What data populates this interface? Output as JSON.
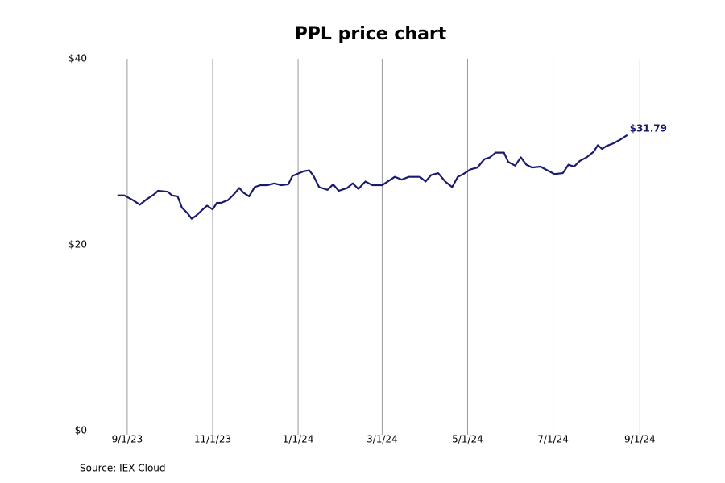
{
  "chart_data": {
    "type": "line",
    "title": "PPL price chart",
    "source": "Source: IEX Cloud",
    "xlim": [
      "2023-08-24",
      "2024-09-10"
    ],
    "xticks": [
      {
        "value": "2023-09-01",
        "label": "9/1/23"
      },
      {
        "value": "2023-11-01",
        "label": "11/1/23"
      },
      {
        "value": "2024-01-01",
        "label": "1/1/24"
      },
      {
        "value": "2024-03-01",
        "label": "3/1/24"
      },
      {
        "value": "2024-05-01",
        "label": "5/1/24"
      },
      {
        "value": "2024-07-01",
        "label": "7/1/24"
      },
      {
        "value": "2024-09-01",
        "label": "9/1/24"
      }
    ],
    "ylim": [
      0,
      40
    ],
    "yticks": [
      {
        "value": 0,
        "label": "$0"
      },
      {
        "value": 20,
        "label": "$20"
      },
      {
        "value": 40,
        "label": "$40"
      }
    ],
    "grid": "x",
    "x": [
      "2023-08-25",
      "2023-08-30",
      "2023-09-05",
      "2023-09-10",
      "2023-09-15",
      "2023-09-20",
      "2023-09-23",
      "2023-09-30",
      "2023-10-03",
      "2023-10-07",
      "2023-10-10",
      "2023-10-14",
      "2023-10-17",
      "2023-10-20",
      "2023-10-25",
      "2023-10-28",
      "2023-11-01",
      "2023-11-04",
      "2023-11-07",
      "2023-11-12",
      "2023-11-16",
      "2023-11-20",
      "2023-11-23",
      "2023-11-27",
      "2023-12-01",
      "2023-12-05",
      "2023-12-10",
      "2023-12-15",
      "2023-12-20",
      "2023-12-25",
      "2023-12-28",
      "2024-01-05",
      "2024-01-09",
      "2024-01-12",
      "2024-01-16",
      "2024-01-22",
      "2024-01-26",
      "2024-01-30",
      "2024-02-05",
      "2024-02-09",
      "2024-02-13",
      "2024-02-18",
      "2024-02-23",
      "2024-03-01",
      "2024-03-05",
      "2024-03-10",
      "2024-03-15",
      "2024-03-20",
      "2024-03-28",
      "2024-04-01",
      "2024-04-05",
      "2024-04-10",
      "2024-04-15",
      "2024-04-20",
      "2024-04-24",
      "2024-04-28",
      "2024-05-03",
      "2024-05-08",
      "2024-05-13",
      "2024-05-17",
      "2024-05-21",
      "2024-05-27",
      "2024-05-30",
      "2024-06-04",
      "2024-06-08",
      "2024-06-12",
      "2024-06-16",
      "2024-06-22",
      "2024-06-27",
      "2024-07-02",
      "2024-07-08",
      "2024-07-12",
      "2024-07-16",
      "2024-07-20",
      "2024-07-25",
      "2024-07-30",
      "2024-08-02",
      "2024-08-05",
      "2024-08-08",
      "2024-08-13",
      "2024-08-18",
      "2024-08-23"
    ],
    "series": [
      {
        "color": "#1a1a6e",
        "values": [
          25.3,
          25.3,
          24.8,
          24.3,
          24.9,
          25.4,
          25.8,
          25.7,
          25.3,
          25.2,
          24.0,
          23.4,
          22.8,
          23.1,
          23.8,
          24.2,
          23.8,
          24.5,
          24.5,
          24.8,
          25.4,
          26.1,
          25.6,
          25.2,
          26.2,
          26.4,
          26.4,
          26.6,
          26.4,
          26.5,
          27.4,
          27.9,
          28.0,
          27.4,
          26.2,
          25.9,
          26.5,
          25.8,
          26.1,
          26.6,
          26.0,
          26.8,
          26.4,
          26.4,
          26.8,
          27.3,
          27.0,
          27.3,
          27.3,
          26.8,
          27.5,
          27.7,
          26.8,
          26.2,
          27.3,
          27.6,
          28.1,
          28.3,
          29.2,
          29.4,
          29.9,
          29.9,
          28.9,
          28.5,
          29.4,
          28.6,
          28.3,
          28.4,
          28.0,
          27.6,
          27.7,
          28.6,
          28.4,
          29.0,
          29.4,
          30.0,
          30.7,
          30.3,
          30.6,
          30.9,
          31.3,
          31.79
        ],
        "last_value_label": "$31.79"
      }
    ]
  }
}
